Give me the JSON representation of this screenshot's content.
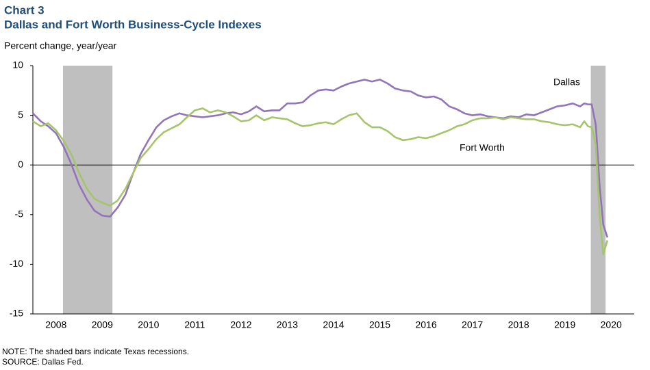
{
  "chart_data": {
    "type": "line",
    "label": "Chart 3",
    "title": "Dallas and Fort Worth Business-Cycle Indexes",
    "y_label": "Percent change, year/year",
    "notes": [
      "NOTE: The shaded bars indicate Texas recessions.",
      "SOURCE: Dallas Fed."
    ],
    "x": [
      2008,
      2008.17,
      2008.33,
      2008.5,
      2008.67,
      2008.83,
      2009,
      2009.17,
      2009.33,
      2009.5,
      2009.67,
      2009.83,
      2010,
      2010.17,
      2010.33,
      2010.5,
      2010.67,
      2010.83,
      2011,
      2011.17,
      2011.33,
      2011.5,
      2011.67,
      2011.83,
      2012,
      2012.17,
      2012.33,
      2012.5,
      2012.67,
      2012.83,
      2013,
      2013.17,
      2013.33,
      2013.5,
      2013.67,
      2013.83,
      2014,
      2014.17,
      2014.33,
      2014.5,
      2014.67,
      2014.83,
      2015,
      2015.17,
      2015.33,
      2015.5,
      2015.67,
      2015.83,
      2016,
      2016.17,
      2016.33,
      2016.5,
      2016.67,
      2016.83,
      2017,
      2017.17,
      2017.33,
      2017.5,
      2017.67,
      2017.83,
      2018,
      2018.17,
      2018.33,
      2018.5,
      2018.67,
      2018.83,
      2019,
      2019.17,
      2019.33,
      2019.5,
      2019.67,
      2019.83,
      2019.92,
      2020,
      2020.08,
      2020.17,
      2020.25,
      2020.33,
      2020.42
    ],
    "series": [
      {
        "name": "Dallas",
        "color": "#9274b8",
        "values": [
          5.2,
          4.4,
          3.9,
          3.2,
          1.8,
          0.1,
          -2.0,
          -3.5,
          -4.6,
          -5.1,
          -5.2,
          -4.3,
          -3.0,
          -0.8,
          1.1,
          2.5,
          3.8,
          4.5,
          4.9,
          5.2,
          5.0,
          4.9,
          4.8,
          4.9,
          5.0,
          5.2,
          5.3,
          5.1,
          5.4,
          5.9,
          5.4,
          5.5,
          5.5,
          6.2,
          6.2,
          6.3,
          7.0,
          7.5,
          7.6,
          7.5,
          7.9,
          8.2,
          8.4,
          8.6,
          8.4,
          8.6,
          8.2,
          7.7,
          7.5,
          7.4,
          7.0,
          6.8,
          6.9,
          6.6,
          5.9,
          5.6,
          5.2,
          5.0,
          5.1,
          4.9,
          4.8,
          4.7,
          4.9,
          4.8,
          5.1,
          5.0,
          5.3,
          5.6,
          5.9,
          6.0,
          6.2,
          5.9,
          6.2,
          6.1,
          6.1,
          4.0,
          -2.0,
          -6.0,
          -7.3
        ]
      },
      {
        "name": "Fort Worth",
        "color": "#a5c46b",
        "values": [
          4.4,
          3.9,
          4.2,
          3.5,
          2.4,
          1.1,
          -0.8,
          -2.4,
          -3.4,
          -3.8,
          -4.1,
          -3.6,
          -2.4,
          -0.8,
          0.7,
          1.6,
          2.6,
          3.3,
          3.7,
          4.1,
          4.8,
          5.5,
          5.7,
          5.3,
          5.5,
          5.3,
          4.9,
          4.4,
          4.5,
          5.0,
          4.5,
          4.8,
          4.7,
          4.6,
          4.2,
          3.9,
          4.0,
          4.2,
          4.3,
          4.1,
          4.6,
          5.0,
          5.2,
          4.3,
          3.8,
          3.8,
          3.4,
          2.8,
          2.5,
          2.6,
          2.8,
          2.7,
          2.9,
          3.2,
          3.5,
          3.9,
          4.1,
          4.5,
          4.7,
          4.7,
          4.8,
          4.6,
          4.8,
          4.7,
          4.6,
          4.6,
          4.4,
          4.3,
          4.1,
          4.0,
          4.1,
          3.8,
          4.4,
          3.9,
          3.8,
          2.0,
          -5.0,
          -9.0,
          -7.6
        ]
      }
    ],
    "recessions": [
      [
        2008.65,
        2009.72
      ],
      [
        2020.06,
        2020.38
      ]
    ],
    "recession_color": "#bfbfbf",
    "xlim": [
      2008,
      2021
    ],
    "xticks": [
      {
        "value": 2008.5,
        "label": "2008"
      },
      {
        "value": 2009.5,
        "label": "2009"
      },
      {
        "value": 2010.5,
        "label": "2010"
      },
      {
        "value": 2011.5,
        "label": "2011"
      },
      {
        "value": 2012.5,
        "label": "2012"
      },
      {
        "value": 2013.5,
        "label": "2013"
      },
      {
        "value": 2014.5,
        "label": "2014"
      },
      {
        "value": 2015.5,
        "label": "2015"
      },
      {
        "value": 2016.5,
        "label": "2016"
      },
      {
        "value": 2017.5,
        "label": "2017"
      },
      {
        "value": 2018.5,
        "label": "2018"
      },
      {
        "value": 2019.5,
        "label": "2019"
      },
      {
        "value": 2020.5,
        "label": "2020"
      }
    ],
    "ylim": [
      -15,
      10
    ],
    "yticks": [
      -15,
      -10,
      -5,
      0,
      5,
      10
    ]
  }
}
